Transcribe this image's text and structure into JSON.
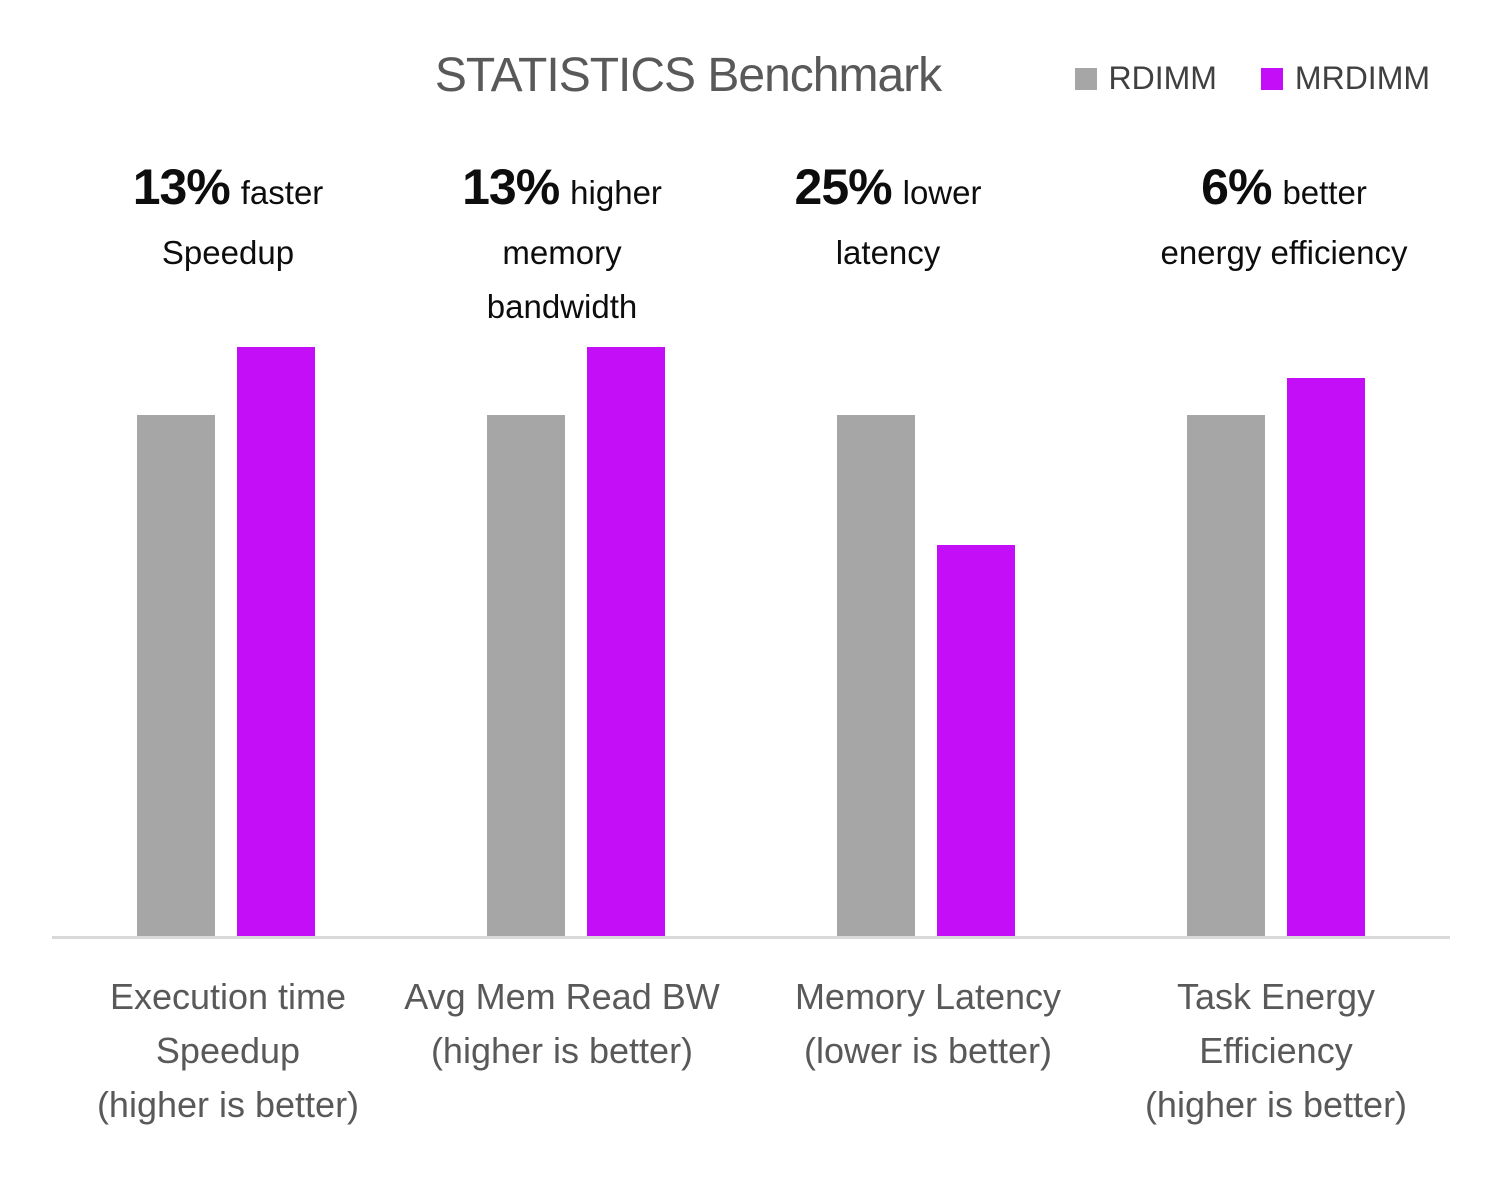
{
  "title": "STATISTICS Benchmark",
  "colors": {
    "rdimm": "#A6A6A6",
    "mrdimm": "#C30EF7",
    "axis_line": "#D9D9D9",
    "title_text": "#595959",
    "label_text": "#595959",
    "annotation_text": "#0D0D0D"
  },
  "legend": [
    {
      "label": "RDIMM",
      "color": "#A6A6A6"
    },
    {
      "label": "MRDIMM",
      "color": "#C30EF7"
    }
  ],
  "groups": [
    {
      "annotation": {
        "pct": "13%",
        "qualifier": "faster",
        "rest": "Speedup"
      },
      "label": "Execution time\nSpeedup\n(higher is better)",
      "rdimm": 1.0,
      "mrdimm": 1.13
    },
    {
      "annotation": {
        "pct": "13%",
        "qualifier": "higher",
        "rest": "memory\nbandwidth"
      },
      "label": "Avg Mem Read BW\n(higher is better)",
      "rdimm": 1.0,
      "mrdimm": 1.13
    },
    {
      "annotation": {
        "pct": "25%",
        "qualifier": "lower",
        "rest": "latency"
      },
      "label": "Memory Latency\n(lower is better)",
      "rdimm": 1.0,
      "mrdimm": 0.75
    },
    {
      "annotation": {
        "pct": "6%",
        "qualifier": "better",
        "rest": "energy efficiency"
      },
      "label": "Task Energy\nEfficiency\n(higher is better)",
      "rdimm": 1.0,
      "mrdimm": 1.07
    }
  ],
  "chart_data": {
    "type": "bar",
    "title": "STATISTICS Benchmark",
    "categories": [
      "Execution time Speedup (higher is better)",
      "Avg Mem Read BW (higher is better)",
      "Memory Latency (lower is better)",
      "Task Energy Efficiency (higher is better)"
    ],
    "series": [
      {
        "name": "RDIMM",
        "color": "#A6A6A6",
        "values": [
          1.0,
          1.0,
          1.0,
          1.0
        ]
      },
      {
        "name": "MRDIMM",
        "color": "#C30EF7",
        "values": [
          1.13,
          1.13,
          0.75,
          1.07
        ]
      }
    ],
    "annotations": [
      "13% faster Speedup",
      "13% higher memory bandwidth",
      "25% lower latency",
      "6% better energy efficiency"
    ],
    "ylabel": "",
    "xlabel": "",
    "ylim": [
      0,
      1.2
    ],
    "y_axis_visible": false,
    "gridlines": false,
    "legend_position": "top-right"
  }
}
